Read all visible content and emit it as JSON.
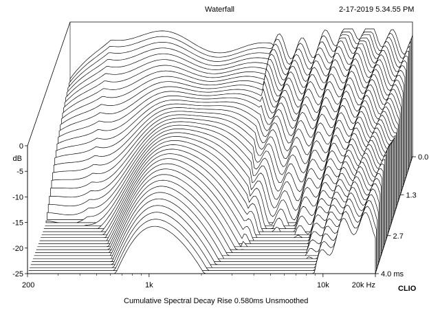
{
  "header": {
    "title": "Waterfall",
    "timestamp": "2-17-2019 5.34.55 PM"
  },
  "footer": {
    "caption": "Cumulative Spectral Decay   Rise 0.580ms   Unsmoothed",
    "brand": "CLIO"
  },
  "chart_data": {
    "type": "waterfall",
    "title": "Waterfall",
    "z_unit_label": "dB",
    "z_ticks": [
      0,
      -5,
      -10,
      -15,
      -20,
      -25
    ],
    "z_tick_labels": [
      "0",
      "-5",
      "-10",
      "-15",
      "-20",
      "-25"
    ],
    "zlim": [
      -25,
      0
    ],
    "x_scale": "log",
    "xlim": [
      200,
      20000
    ],
    "x_tick_labels": [
      {
        "value": 200,
        "label": "200"
      },
      {
        "value": 1000,
        "label": "1k"
      },
      {
        "value": 10000,
        "label": "10k"
      },
      {
        "value": 20000,
        "label": "20k Hz"
      }
    ],
    "x_minor_ticks": [
      300,
      400,
      500,
      600,
      700,
      800,
      900,
      2000,
      3000,
      4000,
      5000,
      6000,
      7000,
      8000,
      9000
    ],
    "t_ticks": [
      {
        "value": 0.0,
        "label": "0.0"
      },
      {
        "value": 1.3,
        "label": "1.3"
      },
      {
        "value": 2.7,
        "label": "2.7"
      },
      {
        "value": 4.0,
        "label": "4.0  ms"
      }
    ],
    "tlim": [
      0,
      4.0
    ],
    "slice_count": 40,
    "grid": false
  }
}
